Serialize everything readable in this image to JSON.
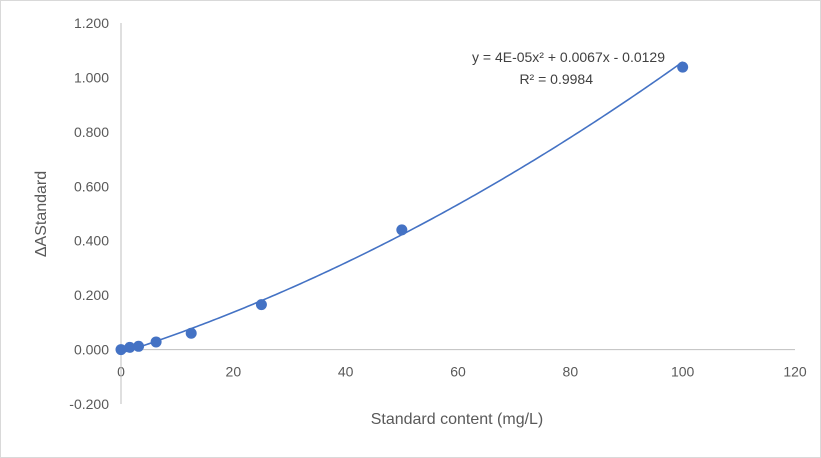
{
  "chart_data": {
    "type": "scatter",
    "title": "",
    "xlabel": "Standard content (mg/L)",
    "ylabel": "ΔAStandard",
    "xlim": [
      0,
      120
    ],
    "ylim": [
      -0.2,
      1.2
    ],
    "x_ticks": [
      "0",
      "20",
      "40",
      "60",
      "80",
      "100",
      "120"
    ],
    "y_ticks": [
      "-0.200",
      "0.000",
      "0.200",
      "0.400",
      "0.600",
      "0.800",
      "1.000",
      "1.200"
    ],
    "grid": false,
    "series": [
      {
        "x": [
          0,
          1.5625,
          3.125,
          6.25,
          12.5,
          25,
          50,
          100
        ],
        "y": [
          0.0,
          0.008,
          0.012,
          0.028,
          0.06,
          0.165,
          0.44,
          1.038
        ],
        "color": "#4472c4"
      }
    ],
    "trendline": {
      "type": "polynomial",
      "coefficients": {
        "a": 4e-05,
        "b": 0.0067,
        "c": -0.0129
      },
      "equation_text": "y = 4E-05x² + 0.0067x - 0.0129",
      "r2_text": "R² = 0.9984",
      "color": "#4472c4"
    }
  }
}
